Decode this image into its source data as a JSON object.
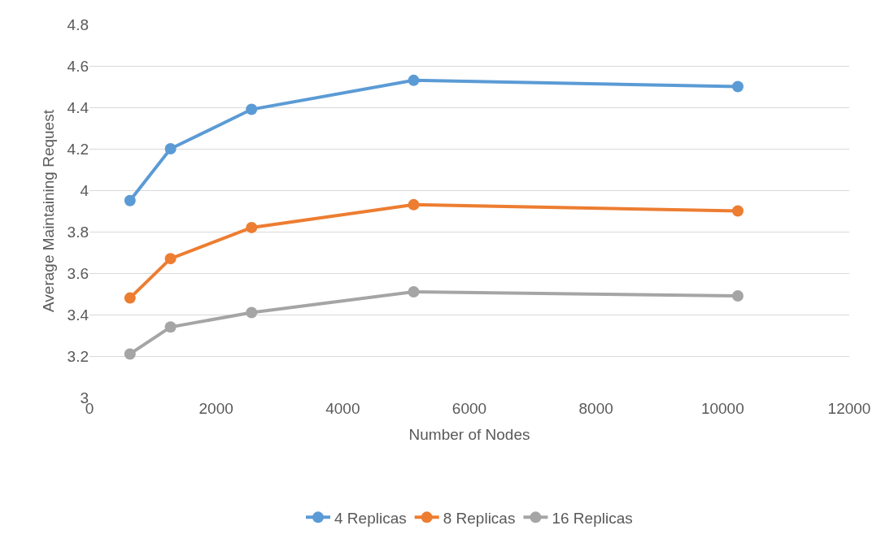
{
  "chart_data": {
    "type": "line",
    "xlabel": "Number of Nodes",
    "ylabel": "Average Maintaining Request",
    "x": [
      640,
      1280,
      2560,
      5120,
      10240
    ],
    "series": [
      {
        "name": "4 Replicas",
        "color": "#5b9bd5",
        "values": [
          3.95,
          4.2,
          4.39,
          4.53,
          4.5
        ]
      },
      {
        "name": "8 Replicas",
        "color": "#ed7d31",
        "values": [
          3.48,
          3.67,
          3.82,
          3.93,
          3.9
        ]
      },
      {
        "name": "16 Replicas",
        "color": "#a5a5a5",
        "values": [
          3.21,
          3.34,
          3.41,
          3.51,
          3.49
        ]
      }
    ],
    "xlim": [
      0,
      12000
    ],
    "xticks": [
      0,
      2000,
      4000,
      6000,
      8000,
      10000,
      12000
    ],
    "ylim": [
      3,
      4.8
    ],
    "yticks": [
      3,
      3.2,
      3.4,
      3.6,
      3.8,
      4,
      4.2,
      4.4,
      4.6,
      4.8
    ],
    "grid": "y",
    "legend": "bottom",
    "marker": "circle",
    "line_style": "solid"
  }
}
